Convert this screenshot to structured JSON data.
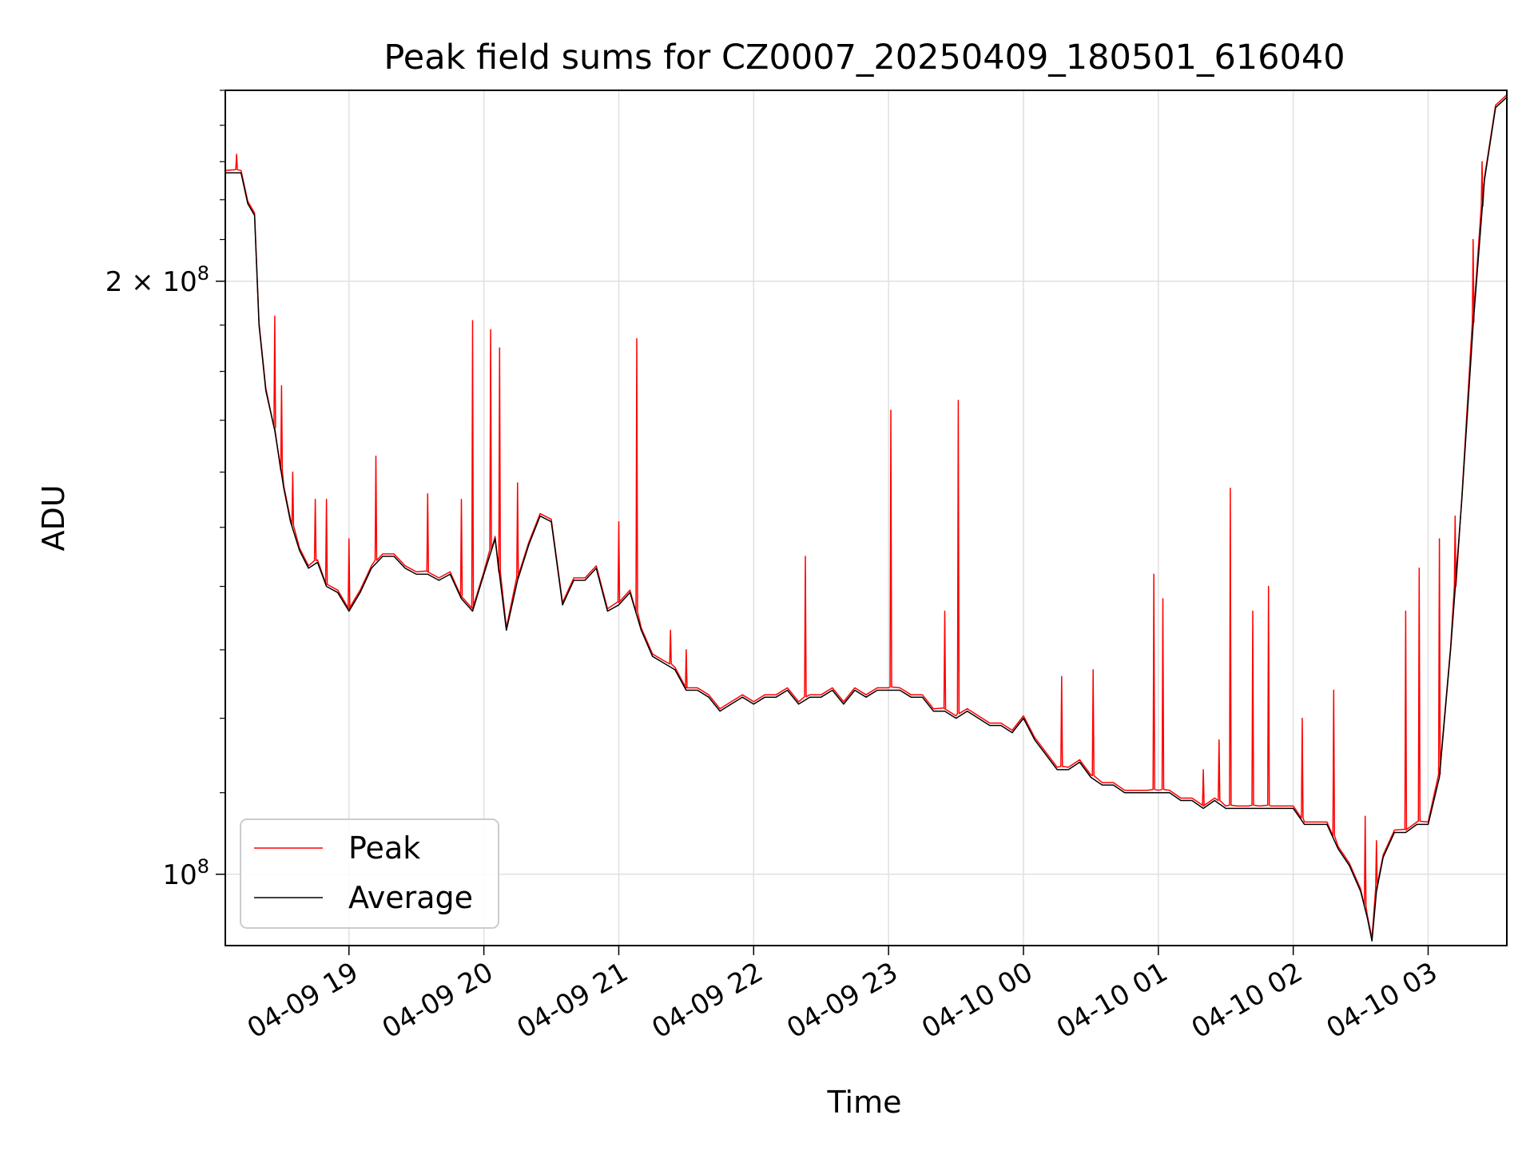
{
  "chart_data": {
    "type": "line",
    "title": "Peak field sums for CZ0007_20250409_180501_616040",
    "xlabel": "Time",
    "ylabel": "ADU",
    "y_scale": "log",
    "grid": true,
    "legend_position": "lower-left",
    "xlim": [
      "2025-04-09 18:05",
      "2025-04-10 03:35"
    ],
    "ylim": [
      92000000,
      250000000
    ],
    "x_ticks": [
      "04-09 19",
      "04-09 20",
      "04-09 21",
      "04-09 22",
      "04-09 23",
      "04-10 00",
      "04-10 01",
      "04-10 02",
      "04-10 03"
    ],
    "y_ticks": [
      {
        "value": 200000000,
        "base": "2 × 10",
        "exp": "8"
      },
      {
        "value": 100000000,
        "base": "10",
        "exp": "8"
      }
    ],
    "series": [
      {
        "name": "Peak",
        "color": "#ff0000"
      },
      {
        "name": "Average",
        "color": "#000000"
      }
    ],
    "average_points": [
      [
        "2025-04-09 18:05",
        227000000
      ],
      [
        "2025-04-09 18:12",
        227000000
      ],
      [
        "2025-04-09 18:15",
        219000000
      ],
      [
        "2025-04-09 18:18",
        216000000
      ],
      [
        "2025-04-09 18:20",
        190000000
      ],
      [
        "2025-04-09 18:23",
        176000000
      ],
      [
        "2025-04-09 18:27",
        168000000
      ],
      [
        "2025-04-09 18:31",
        157000000
      ],
      [
        "2025-04-09 18:34",
        151000000
      ],
      [
        "2025-04-09 18:38",
        146000000
      ],
      [
        "2025-04-09 18:42",
        143000000
      ],
      [
        "2025-04-09 18:46",
        144000000
      ],
      [
        "2025-04-09 18:50",
        140000000
      ],
      [
        "2025-04-09 18:55",
        139000000
      ],
      [
        "2025-04-09 19:00",
        136000000
      ],
      [
        "2025-04-09 19:05",
        139000000
      ],
      [
        "2025-04-09 19:10",
        143000000
      ],
      [
        "2025-04-09 19:15",
        145000000
      ],
      [
        "2025-04-09 19:20",
        145000000
      ],
      [
        "2025-04-09 19:25",
        143000000
      ],
      [
        "2025-04-09 19:30",
        142000000
      ],
      [
        "2025-04-09 19:35",
        142000000
      ],
      [
        "2025-04-09 19:40",
        141000000
      ],
      [
        "2025-04-09 19:45",
        142000000
      ],
      [
        "2025-04-09 19:50",
        138000000
      ],
      [
        "2025-04-09 19:55",
        136000000
      ],
      [
        "2025-04-09 20:00",
        142000000
      ],
      [
        "2025-04-09 20:05",
        148000000
      ],
      [
        "2025-04-09 20:10",
        133000000
      ],
      [
        "2025-04-09 20:15",
        141000000
      ],
      [
        "2025-04-09 20:20",
        147000000
      ],
      [
        "2025-04-09 20:25",
        152000000
      ],
      [
        "2025-04-09 20:30",
        151000000
      ],
      [
        "2025-04-09 20:35",
        137000000
      ],
      [
        "2025-04-09 20:40",
        141000000
      ],
      [
        "2025-04-09 20:45",
        141000000
      ],
      [
        "2025-04-09 20:50",
        143000000
      ],
      [
        "2025-04-09 20:55",
        136000000
      ],
      [
        "2025-04-09 21:00",
        137000000
      ],
      [
        "2025-04-09 21:05",
        139000000
      ],
      [
        "2025-04-09 21:10",
        133000000
      ],
      [
        "2025-04-09 21:15",
        129000000
      ],
      [
        "2025-04-09 21:20",
        128000000
      ],
      [
        "2025-04-09 21:25",
        127000000
      ],
      [
        "2025-04-09 21:30",
        124000000
      ],
      [
        "2025-04-09 21:35",
        124000000
      ],
      [
        "2025-04-09 21:40",
        123000000
      ],
      [
        "2025-04-09 21:45",
        121000000
      ],
      [
        "2025-04-09 21:50",
        122000000
      ],
      [
        "2025-04-09 21:55",
        123000000
      ],
      [
        "2025-04-09 22:00",
        122000000
      ],
      [
        "2025-04-09 22:05",
        123000000
      ],
      [
        "2025-04-09 22:10",
        123000000
      ],
      [
        "2025-04-09 22:15",
        124000000
      ],
      [
        "2025-04-09 22:20",
        122000000
      ],
      [
        "2025-04-09 22:25",
        123000000
      ],
      [
        "2025-04-09 22:30",
        123000000
      ],
      [
        "2025-04-09 22:35",
        124000000
      ],
      [
        "2025-04-09 22:40",
        122000000
      ],
      [
        "2025-04-09 22:45",
        124000000
      ],
      [
        "2025-04-09 22:50",
        123000000
      ],
      [
        "2025-04-09 22:55",
        124000000
      ],
      [
        "2025-04-09 23:00",
        124000000
      ],
      [
        "2025-04-09 23:05",
        124000000
      ],
      [
        "2025-04-09 23:10",
        123000000
      ],
      [
        "2025-04-09 23:15",
        123000000
      ],
      [
        "2025-04-09 23:20",
        121000000
      ],
      [
        "2025-04-09 23:25",
        121000000
      ],
      [
        "2025-04-09 23:30",
        120000000
      ],
      [
        "2025-04-09 23:35",
        121000000
      ],
      [
        "2025-04-09 23:40",
        120000000
      ],
      [
        "2025-04-09 23:45",
        119000000
      ],
      [
        "2025-04-09 23:50",
        119000000
      ],
      [
        "2025-04-09 23:55",
        118000000
      ],
      [
        "2025-04-10 00:00",
        120000000
      ],
      [
        "2025-04-10 00:05",
        117000000
      ],
      [
        "2025-04-10 00:10",
        115000000
      ],
      [
        "2025-04-10 00:15",
        113000000
      ],
      [
        "2025-04-10 00:20",
        113000000
      ],
      [
        "2025-04-10 00:25",
        114000000
      ],
      [
        "2025-04-10 00:30",
        112000000
      ],
      [
        "2025-04-10 00:35",
        111000000
      ],
      [
        "2025-04-10 00:40",
        111000000
      ],
      [
        "2025-04-10 00:45",
        110000000
      ],
      [
        "2025-04-10 00:50",
        110000000
      ],
      [
        "2025-04-10 00:55",
        110000000
      ],
      [
        "2025-04-10 01:00",
        110000000
      ],
      [
        "2025-04-10 01:05",
        110000000
      ],
      [
        "2025-04-10 01:10",
        109000000
      ],
      [
        "2025-04-10 01:15",
        109000000
      ],
      [
        "2025-04-10 01:20",
        108000000
      ],
      [
        "2025-04-10 01:25",
        109000000
      ],
      [
        "2025-04-10 01:30",
        108000000
      ],
      [
        "2025-04-10 01:35",
        108000000
      ],
      [
        "2025-04-10 01:40",
        108000000
      ],
      [
        "2025-04-10 01:45",
        108000000
      ],
      [
        "2025-04-10 01:50",
        108000000
      ],
      [
        "2025-04-10 01:55",
        108000000
      ],
      [
        "2025-04-10 02:00",
        108000000
      ],
      [
        "2025-04-10 02:05",
        106000000
      ],
      [
        "2025-04-10 02:10",
        106000000
      ],
      [
        "2025-04-10 02:15",
        106000000
      ],
      [
        "2025-04-10 02:20",
        103000000
      ],
      [
        "2025-04-10 02:25",
        101000000
      ],
      [
        "2025-04-10 02:30",
        98000000
      ],
      [
        "2025-04-10 02:33",
        95000000
      ],
      [
        "2025-04-10 02:35",
        92500000
      ],
      [
        "2025-04-10 02:37",
        98000000
      ],
      [
        "2025-04-10 02:40",
        102000000
      ],
      [
        "2025-04-10 02:45",
        105000000
      ],
      [
        "2025-04-10 02:50",
        105000000
      ],
      [
        "2025-04-10 02:55",
        106000000
      ],
      [
        "2025-04-10 03:00",
        106000000
      ],
      [
        "2025-04-10 03:05",
        112000000
      ],
      [
        "2025-04-10 03:10",
        130000000
      ],
      [
        "2025-04-10 03:15",
        155000000
      ],
      [
        "2025-04-10 03:20",
        190000000
      ],
      [
        "2025-04-10 03:25",
        225000000
      ],
      [
        "2025-04-10 03:30",
        245000000
      ],
      [
        "2025-04-10 03:35",
        248000000
      ]
    ],
    "peak_spikes": [
      [
        "2025-04-09 18:10",
        232000000
      ],
      [
        "2025-04-09 18:27",
        192000000
      ],
      [
        "2025-04-09 18:30",
        177000000
      ],
      [
        "2025-04-09 18:35",
        160000000
      ],
      [
        "2025-04-09 18:45",
        155000000
      ],
      [
        "2025-04-09 18:50",
        155000000
      ],
      [
        "2025-04-09 19:00",
        148000000
      ],
      [
        "2025-04-09 19:12",
        163000000
      ],
      [
        "2025-04-09 19:35",
        156000000
      ],
      [
        "2025-04-09 19:50",
        155000000
      ],
      [
        "2025-04-09 19:55",
        191000000
      ],
      [
        "2025-04-09 20:03",
        189000000
      ],
      [
        "2025-04-09 20:07",
        185000000
      ],
      [
        "2025-04-09 20:15",
        158000000
      ],
      [
        "2025-04-09 21:00",
        151000000
      ],
      [
        "2025-04-09 21:08",
        187000000
      ],
      [
        "2025-04-09 21:23",
        133000000
      ],
      [
        "2025-04-09 21:30",
        130000000
      ],
      [
        "2025-04-09 22:23",
        145000000
      ],
      [
        "2025-04-09 23:01",
        172000000
      ],
      [
        "2025-04-09 23:25",
        136000000
      ],
      [
        "2025-04-09 23:31",
        174000000
      ],
      [
        "2025-04-10 00:17",
        126000000
      ],
      [
        "2025-04-10 00:31",
        127000000
      ],
      [
        "2025-04-10 00:58",
        142000000
      ],
      [
        "2025-04-10 01:02",
        138000000
      ],
      [
        "2025-04-10 01:20",
        113000000
      ],
      [
        "2025-04-10 01:27",
        117000000
      ],
      [
        "2025-04-10 01:32",
        157000000
      ],
      [
        "2025-04-10 01:42",
        136000000
      ],
      [
        "2025-04-10 01:49",
        140000000
      ],
      [
        "2025-04-10 02:04",
        120000000
      ],
      [
        "2025-04-10 02:18",
        124000000
      ],
      [
        "2025-04-10 02:32",
        107000000
      ],
      [
        "2025-04-10 02:37",
        104000000
      ],
      [
        "2025-04-10 02:50",
        136000000
      ],
      [
        "2025-04-10 02:56",
        143000000
      ],
      [
        "2025-04-10 03:05",
        148000000
      ],
      [
        "2025-04-10 03:12",
        152000000
      ],
      [
        "2025-04-10 03:20",
        210000000
      ],
      [
        "2025-04-10 03:24",
        230000000
      ]
    ]
  }
}
